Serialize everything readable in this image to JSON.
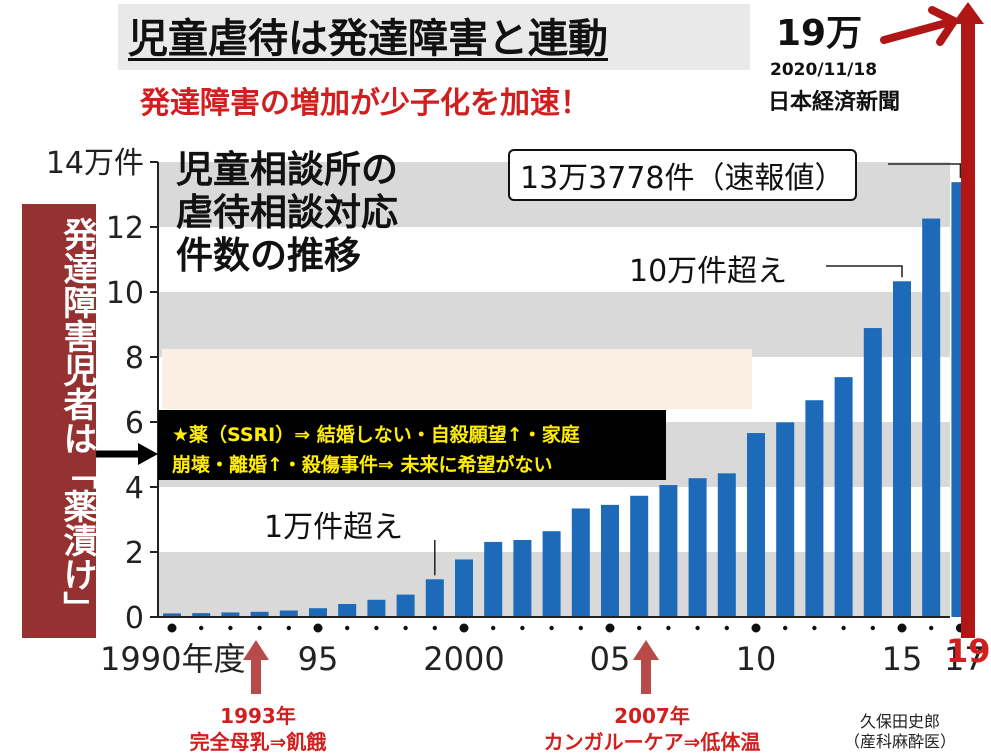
{
  "header": {
    "title": "児童虐待は発達障害と連動",
    "subtitle": "発達障害の増加が少子化を加速！",
    "big_number": "19万",
    "source_date": "2020/11/18",
    "source_name": "日本経済新聞"
  },
  "banner": {
    "text": "発達障害児者は「薬漬け」"
  },
  "callout_box": {
    "line1": "★薬（SSRI）⇒ 結婚しない・自殺願望↑・家庭",
    "line2": "崩壊・離婚↑・殺傷事件⇒ 未来に希望がない"
  },
  "annotations": {
    "a1993_year": "1993年",
    "a1993_text": "完全母乳⇒飢餓",
    "a2007_year": "2007年",
    "a2007_text": "カンガルーケア⇒低体温",
    "label_19": "19",
    "author_name": "久保田史郎",
    "author_role": "（産科麻酔医）"
  },
  "chart_data": {
    "type": "bar",
    "title_lines": [
      "児童相談所の",
      "虐待相談対応",
      "件数の推移"
    ],
    "x": [
      1990,
      1991,
      1992,
      1993,
      1994,
      1995,
      1996,
      1997,
      1998,
      1999,
      2000,
      2001,
      2002,
      2003,
      2004,
      2005,
      2006,
      2007,
      2008,
      2009,
      2010,
      2011,
      2012,
      2013,
      2014,
      2015,
      2016,
      2017
    ],
    "values": [
      0.11,
      0.12,
      0.14,
      0.16,
      0.2,
      0.27,
      0.4,
      0.53,
      0.69,
      1.16,
      1.77,
      2.31,
      2.37,
      2.64,
      3.34,
      3.45,
      3.73,
      4.06,
      4.27,
      4.42,
      5.66,
      5.99,
      6.67,
      7.38,
      8.89,
      10.33,
      12.26,
      13.38
    ],
    "ylim": [
      0,
      14
    ],
    "y_ticks": [
      "0",
      "2",
      "4",
      "6",
      "8",
      "10",
      "12",
      "14万件"
    ],
    "x_tick_labels": [
      "1990年度",
      "95",
      "2000",
      "05",
      "10",
      "15",
      "17"
    ],
    "callouts": {
      "peak": "13万3778件（速報値）",
      "over100k": "10万件超え",
      "over10k": "1万件超え"
    },
    "bar_color": "#1c6ab8",
    "grid_band_color": "#d9d9d9"
  },
  "colors": {
    "accent_red": "#d11f1f",
    "arrow_red": "#b01616",
    "banner": "#963131"
  }
}
